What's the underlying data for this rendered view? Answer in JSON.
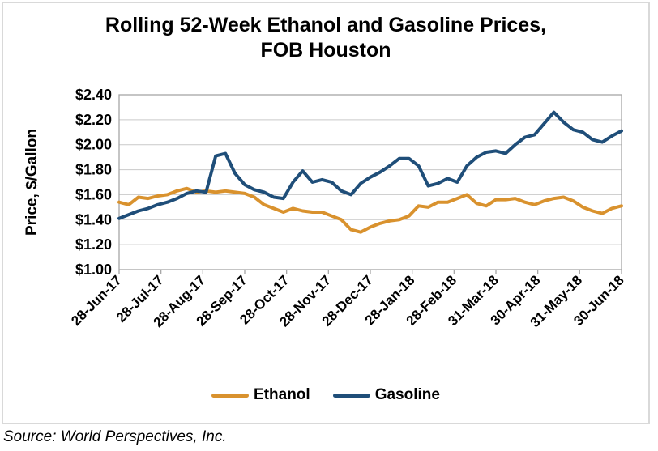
{
  "title": {
    "line1": "Rolling 52-Week Ethanol and Gasoline Prices,",
    "line2": "FOB Houston"
  },
  "source": "Source: World Perspectives, Inc.",
  "colors": {
    "ethanol": "#D9922E",
    "gasoline": "#1F4E79",
    "gridline": "#C9C9C9",
    "plot_border": "#A6A6A6",
    "frame_border": "#D9D9D9",
    "text": "#000000"
  },
  "chart_data": {
    "type": "line",
    "title": "Rolling 52-Week Ethanol and Gasoline Prices, FOB Houston",
    "xlabel": "",
    "ylabel": "Price, $/Gallon",
    "ylim": [
      1.0,
      2.4
    ],
    "ytick_step": 0.2,
    "ytick_labels": [
      "$1.00",
      "$1.20",
      "$1.40",
      "$1.60",
      "$1.80",
      "$2.00",
      "$2.20",
      "$2.40"
    ],
    "xtick_labels": [
      "28-Jun-17",
      "28-Jul-17",
      "28-Aug-17",
      "28-Sep-17",
      "28-Oct-17",
      "28-Nov-17",
      "28-Dec-17",
      "28-Jan-18",
      "28-Feb-18",
      "31-Mar-18",
      "30-Apr-18",
      "31-May-18",
      "30-Jun-18"
    ],
    "grid": "horizontal-only",
    "legend_position": "bottom",
    "x": [
      "28-Jun-17",
      "5-Jul-17",
      "12-Jul-17",
      "19-Jul-17",
      "26-Jul-17",
      "2-Aug-17",
      "9-Aug-17",
      "16-Aug-17",
      "23-Aug-17",
      "30-Aug-17",
      "6-Sep-17",
      "13-Sep-17",
      "20-Sep-17",
      "27-Sep-17",
      "4-Oct-17",
      "11-Oct-17",
      "18-Oct-17",
      "25-Oct-17",
      "1-Nov-17",
      "8-Nov-17",
      "15-Nov-17",
      "22-Nov-17",
      "29-Nov-17",
      "6-Dec-17",
      "13-Dec-17",
      "20-Dec-17",
      "27-Dec-17",
      "3-Jan-18",
      "10-Jan-18",
      "17-Jan-18",
      "24-Jan-18",
      "31-Jan-18",
      "7-Feb-18",
      "14-Feb-18",
      "21-Feb-18",
      "28-Feb-18",
      "7-Mar-18",
      "14-Mar-18",
      "21-Mar-18",
      "28-Mar-18",
      "4-Apr-18",
      "11-Apr-18",
      "18-Apr-18",
      "25-Apr-18",
      "2-May-18",
      "9-May-18",
      "16-May-18",
      "23-May-18",
      "30-May-18",
      "6-Jun-18",
      "13-Jun-18",
      "20-Jun-18",
      "27-Jun-18"
    ],
    "series": [
      {
        "name": "Ethanol",
        "color": "#D9922E",
        "values": [
          1.54,
          1.52,
          1.58,
          1.57,
          1.59,
          1.6,
          1.63,
          1.65,
          1.62,
          1.63,
          1.62,
          1.63,
          1.62,
          1.61,
          1.58,
          1.52,
          1.49,
          1.46,
          1.49,
          1.47,
          1.46,
          1.46,
          1.43,
          1.4,
          1.32,
          1.3,
          1.34,
          1.37,
          1.39,
          1.4,
          1.43,
          1.51,
          1.5,
          1.54,
          1.54,
          1.57,
          1.6,
          1.53,
          1.51,
          1.56,
          1.56,
          1.57,
          1.54,
          1.52,
          1.55,
          1.57,
          1.58,
          1.55,
          1.5,
          1.47,
          1.45,
          1.49,
          1.51
        ]
      },
      {
        "name": "Gasoline",
        "color": "#1F4E79",
        "values": [
          1.41,
          1.44,
          1.47,
          1.49,
          1.52,
          1.54,
          1.57,
          1.61,
          1.63,
          1.62,
          1.91,
          1.93,
          1.77,
          1.68,
          1.64,
          1.62,
          1.58,
          1.57,
          1.7,
          1.79,
          1.7,
          1.72,
          1.7,
          1.63,
          1.6,
          1.69,
          1.74,
          1.78,
          1.83,
          1.89,
          1.89,
          1.83,
          1.67,
          1.69,
          1.73,
          1.7,
          1.83,
          1.9,
          1.94,
          1.95,
          1.93,
          2.0,
          2.06,
          2.08,
          2.17,
          2.26,
          2.18,
          2.12,
          2.1,
          2.04,
          2.02,
          2.07,
          2.11
        ]
      }
    ]
  }
}
